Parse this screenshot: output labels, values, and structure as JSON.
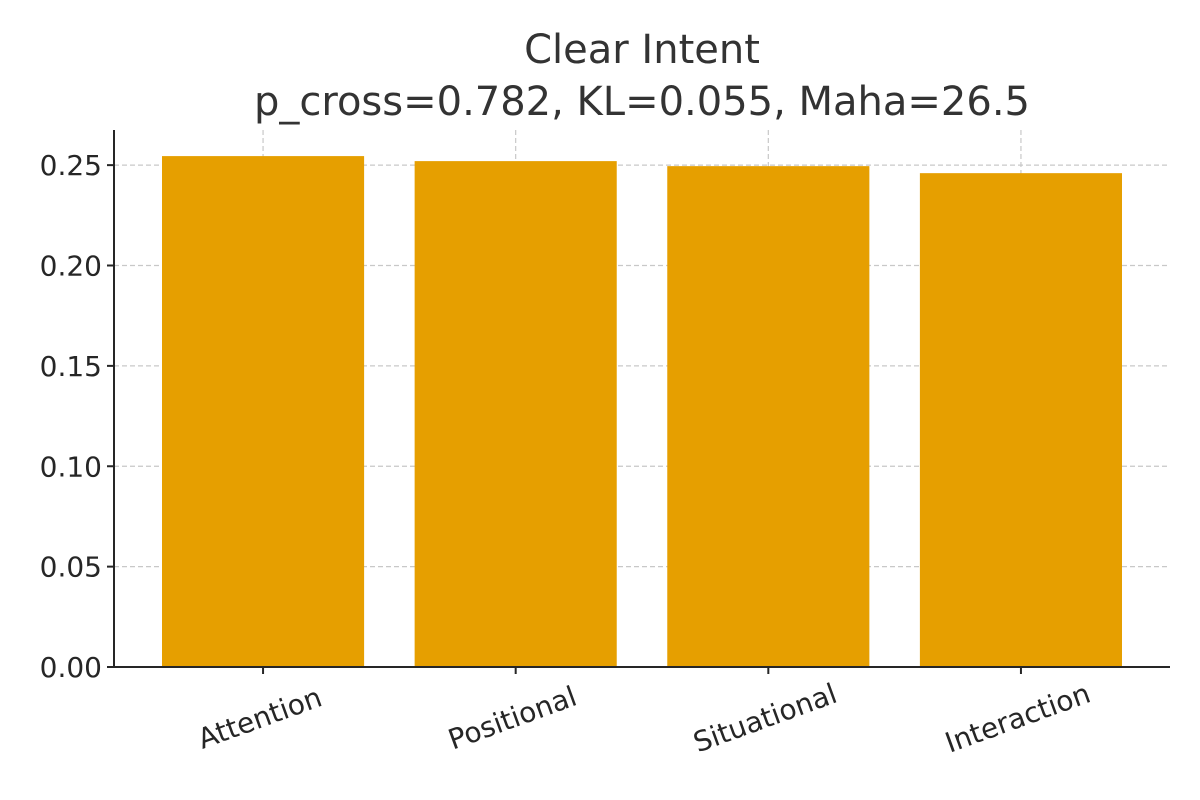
{
  "chart_data": {
    "type": "bar",
    "title": "Clear Intent",
    "subtitle": "p_cross=0.782, KL=0.055, Maha=26.5",
    "categories": [
      "Attention",
      "Positional",
      "Situational",
      "Interaction"
    ],
    "values": [
      0.2545,
      0.252,
      0.2495,
      0.246
    ],
    "color": "#e69f00",
    "ylim": [
      0,
      0.2675
    ],
    "yticks": [
      {
        "value": 0,
        "label": "0.00"
      },
      {
        "value": 0.05,
        "label": "0.05"
      },
      {
        "value": 0.1,
        "label": "0.10"
      },
      {
        "value": 0.15,
        "label": "0.15"
      },
      {
        "value": 0.2,
        "label": "0.20"
      },
      {
        "value": 0.25,
        "label": "0.25"
      }
    ],
    "grid": true
  }
}
